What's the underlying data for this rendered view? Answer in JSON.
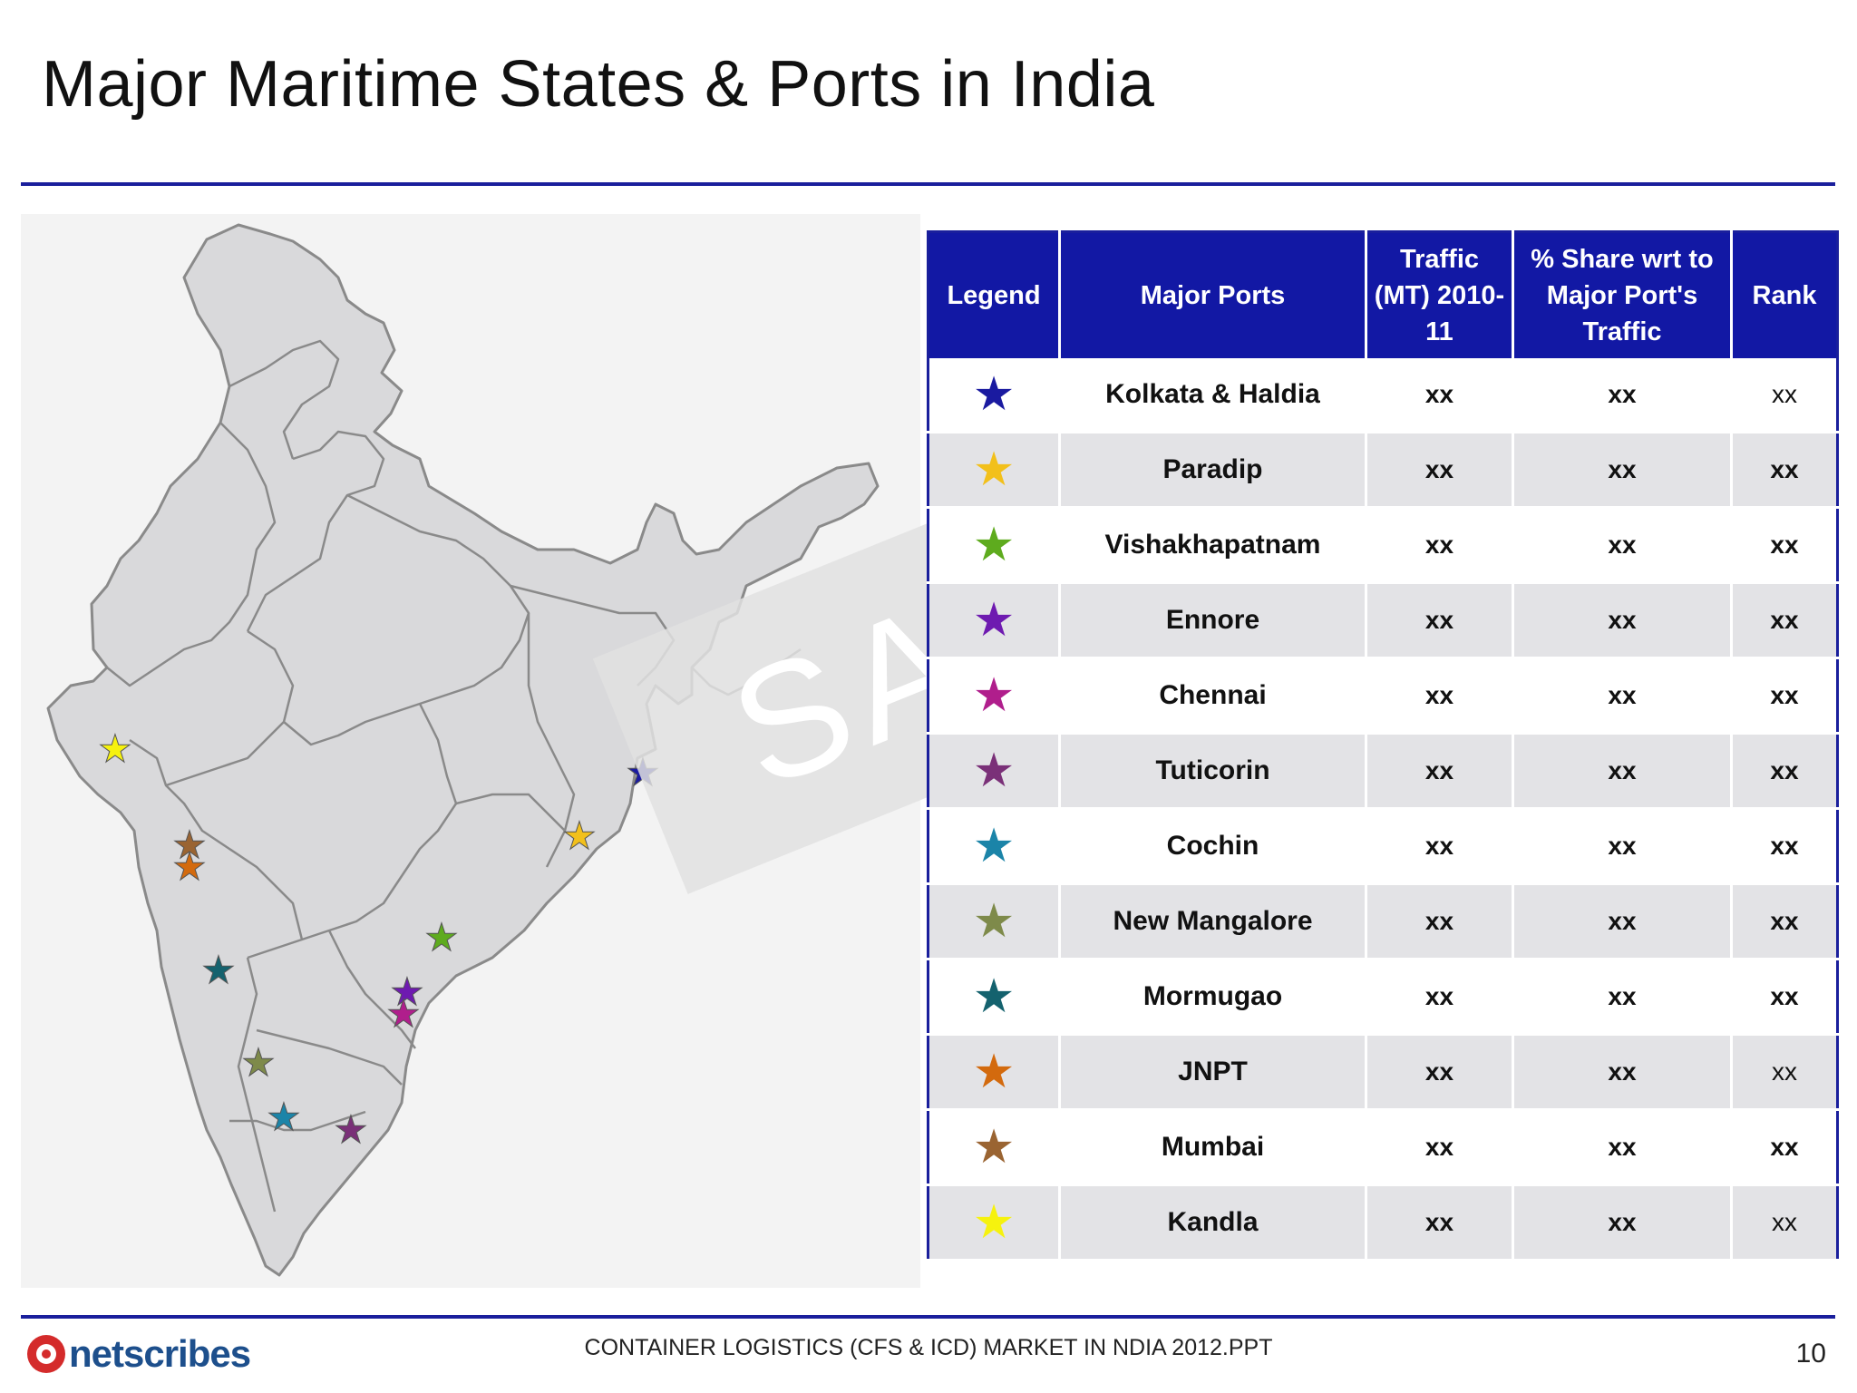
{
  "title": "Major Maritime States & Ports in India",
  "table": {
    "headers": [
      "Legend",
      "Major Ports",
      "Traffic (MT) 2010-11",
      "% Share wrt to Major Port's Traffic",
      "Rank"
    ],
    "rows": [
      {
        "port": "Kolkata & Haldia",
        "color": "#1a1aa0",
        "traffic": "xx",
        "share": "xx",
        "rank": "xx"
      },
      {
        "port": "Paradip",
        "color": "#f2c01b",
        "traffic": "xx",
        "share": "xx",
        "rank": "xx"
      },
      {
        "port": "Vishakhapatnam",
        "color": "#5eab1e",
        "traffic": "xx",
        "share": "xx",
        "rank": "xx"
      },
      {
        "port": "Ennore",
        "color": "#6e1ab0",
        "traffic": "xx",
        "share": "xx",
        "rank": "xx"
      },
      {
        "port": "Chennai",
        "color": "#b01e8c",
        "traffic": "xx",
        "share": "xx",
        "rank": "xx"
      },
      {
        "port": "Tuticorin",
        "color": "#7a3078",
        "traffic": "xx",
        "share": "xx",
        "rank": "xx"
      },
      {
        "port": "Cochin",
        "color": "#1b84a8",
        "traffic": "xx",
        "share": "xx",
        "rank": "xx"
      },
      {
        "port": "New Mangalore",
        "color": "#7e8a4a",
        "traffic": "xx",
        "share": "xx",
        "rank": "xx"
      },
      {
        "port": "Mormugao",
        "color": "#14626e",
        "traffic": "xx",
        "share": "xx",
        "rank": "xx"
      },
      {
        "port": "JNPT",
        "color": "#d36a0e",
        "traffic": "xx",
        "share": "xx",
        "rank": "xx"
      },
      {
        "port": "Mumbai",
        "color": "#9a6432",
        "traffic": "xx",
        "share": "xx",
        "rank": "xx"
      },
      {
        "port": "Kandla",
        "color": "#f6f20e",
        "traffic": "xx",
        "share": "xx",
        "rank": "xx"
      }
    ]
  },
  "watermark": "SAMPLE",
  "logo": "netscribes",
  "footer": "CONTAINER LOGISTICS (CFS & ICD) MARKET IN NDIA 2012.PPT",
  "page_number": "10"
}
